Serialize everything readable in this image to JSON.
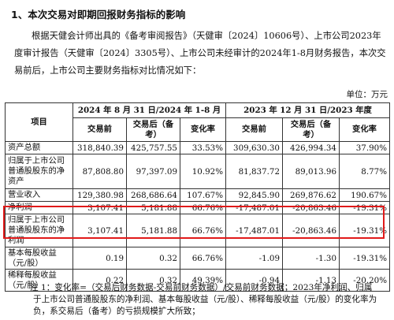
{
  "heading": "1、本次交易对即期回报财务指标的影响",
  "paragraph": "根据天健会计师出具的《备考审阅报告》（天健审〔2024〕10606号）、上市公司2023年度审计报告（天健审〔2024〕3305号）、上市公司未经审计的2024年1-8月财务报告，本次交易前后，上市公司主要财务指标对比情况如下：",
  "unit": "单位：万元",
  "table": {
    "header": {
      "item": "项目",
      "period1": "2024 年 8 月 31 日/2024 年 1-8 月",
      "period2": "2023 年 12 月 31 日/2023 年度",
      "before": "交易前",
      "after": "交易后（备考）",
      "change": "变化率"
    },
    "rows": [
      {
        "label": "资产总额",
        "v": [
          "318,840.39",
          "425,757.55",
          "33.53%",
          "309,630.30",
          "426,994.34",
          "37.90%"
        ]
      },
      {
        "label": "归属于上市公司普通股股东的净资产",
        "v": [
          "87,808.80",
          "97,397.09",
          "10.92%",
          "81,837.72",
          "89,013.96",
          "8.77%"
        ]
      },
      {
        "label": "营业收入",
        "v": [
          "129,380.98",
          "268,686.64",
          "107.67%",
          "92,845.90",
          "269,876.62",
          "190.67%"
        ]
      },
      {
        "label": "净利润",
        "v": [
          "3,107.41",
          "5,181.88",
          "66.76%",
          "-17,487.01",
          "-20,863.46",
          "-19.31%"
        ]
      },
      {
        "label": "归属于上市公司普通股股东的净利润",
        "v": [
          "3,107.41",
          "5,181.88",
          "66.76%",
          "-17,487.01",
          "-20,863.46",
          "-19.31%"
        ]
      },
      {
        "label": "基本每股收益（元/股）",
        "v": [
          "0.19",
          "0.32",
          "66.76%",
          "-1.09",
          "-1.30",
          "-19.31%"
        ]
      },
      {
        "label": "稀释每股收益（元/股）",
        "v": [
          "0.22",
          "0.32",
          "49.39%",
          "-0.94",
          "-1.13",
          "-20.20%"
        ]
      }
    ]
  },
  "note": {
    "line1": "注 1：变化率=（交易后财务数据-交易前财务数据）/交易前财务数据；2023年净利润、归属",
    "line2": "于上市公司普通股股东的净利润、基本每股收益（元/股）、稀释每股收益（元/股）的变化率为",
    "line3": "负，系交易后（备考）的亏损规模扩大所致；"
  }
}
